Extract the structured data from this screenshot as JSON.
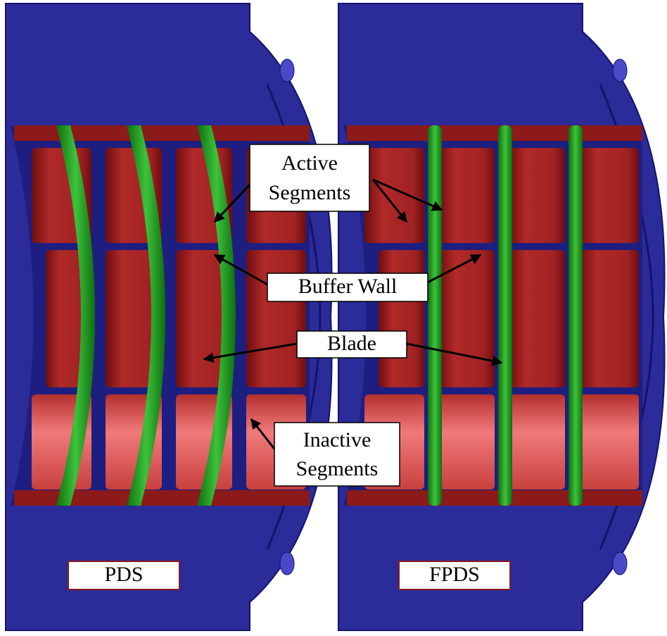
{
  "labels": {
    "active_segments": [
      "Active",
      "Segments"
    ],
    "buffer_wall": "Buffer Wall",
    "blade": "Blade",
    "inactive_segments": [
      "Inactive",
      "Segments"
    ]
  },
  "devices": [
    "PDS",
    "FPDS"
  ]
}
